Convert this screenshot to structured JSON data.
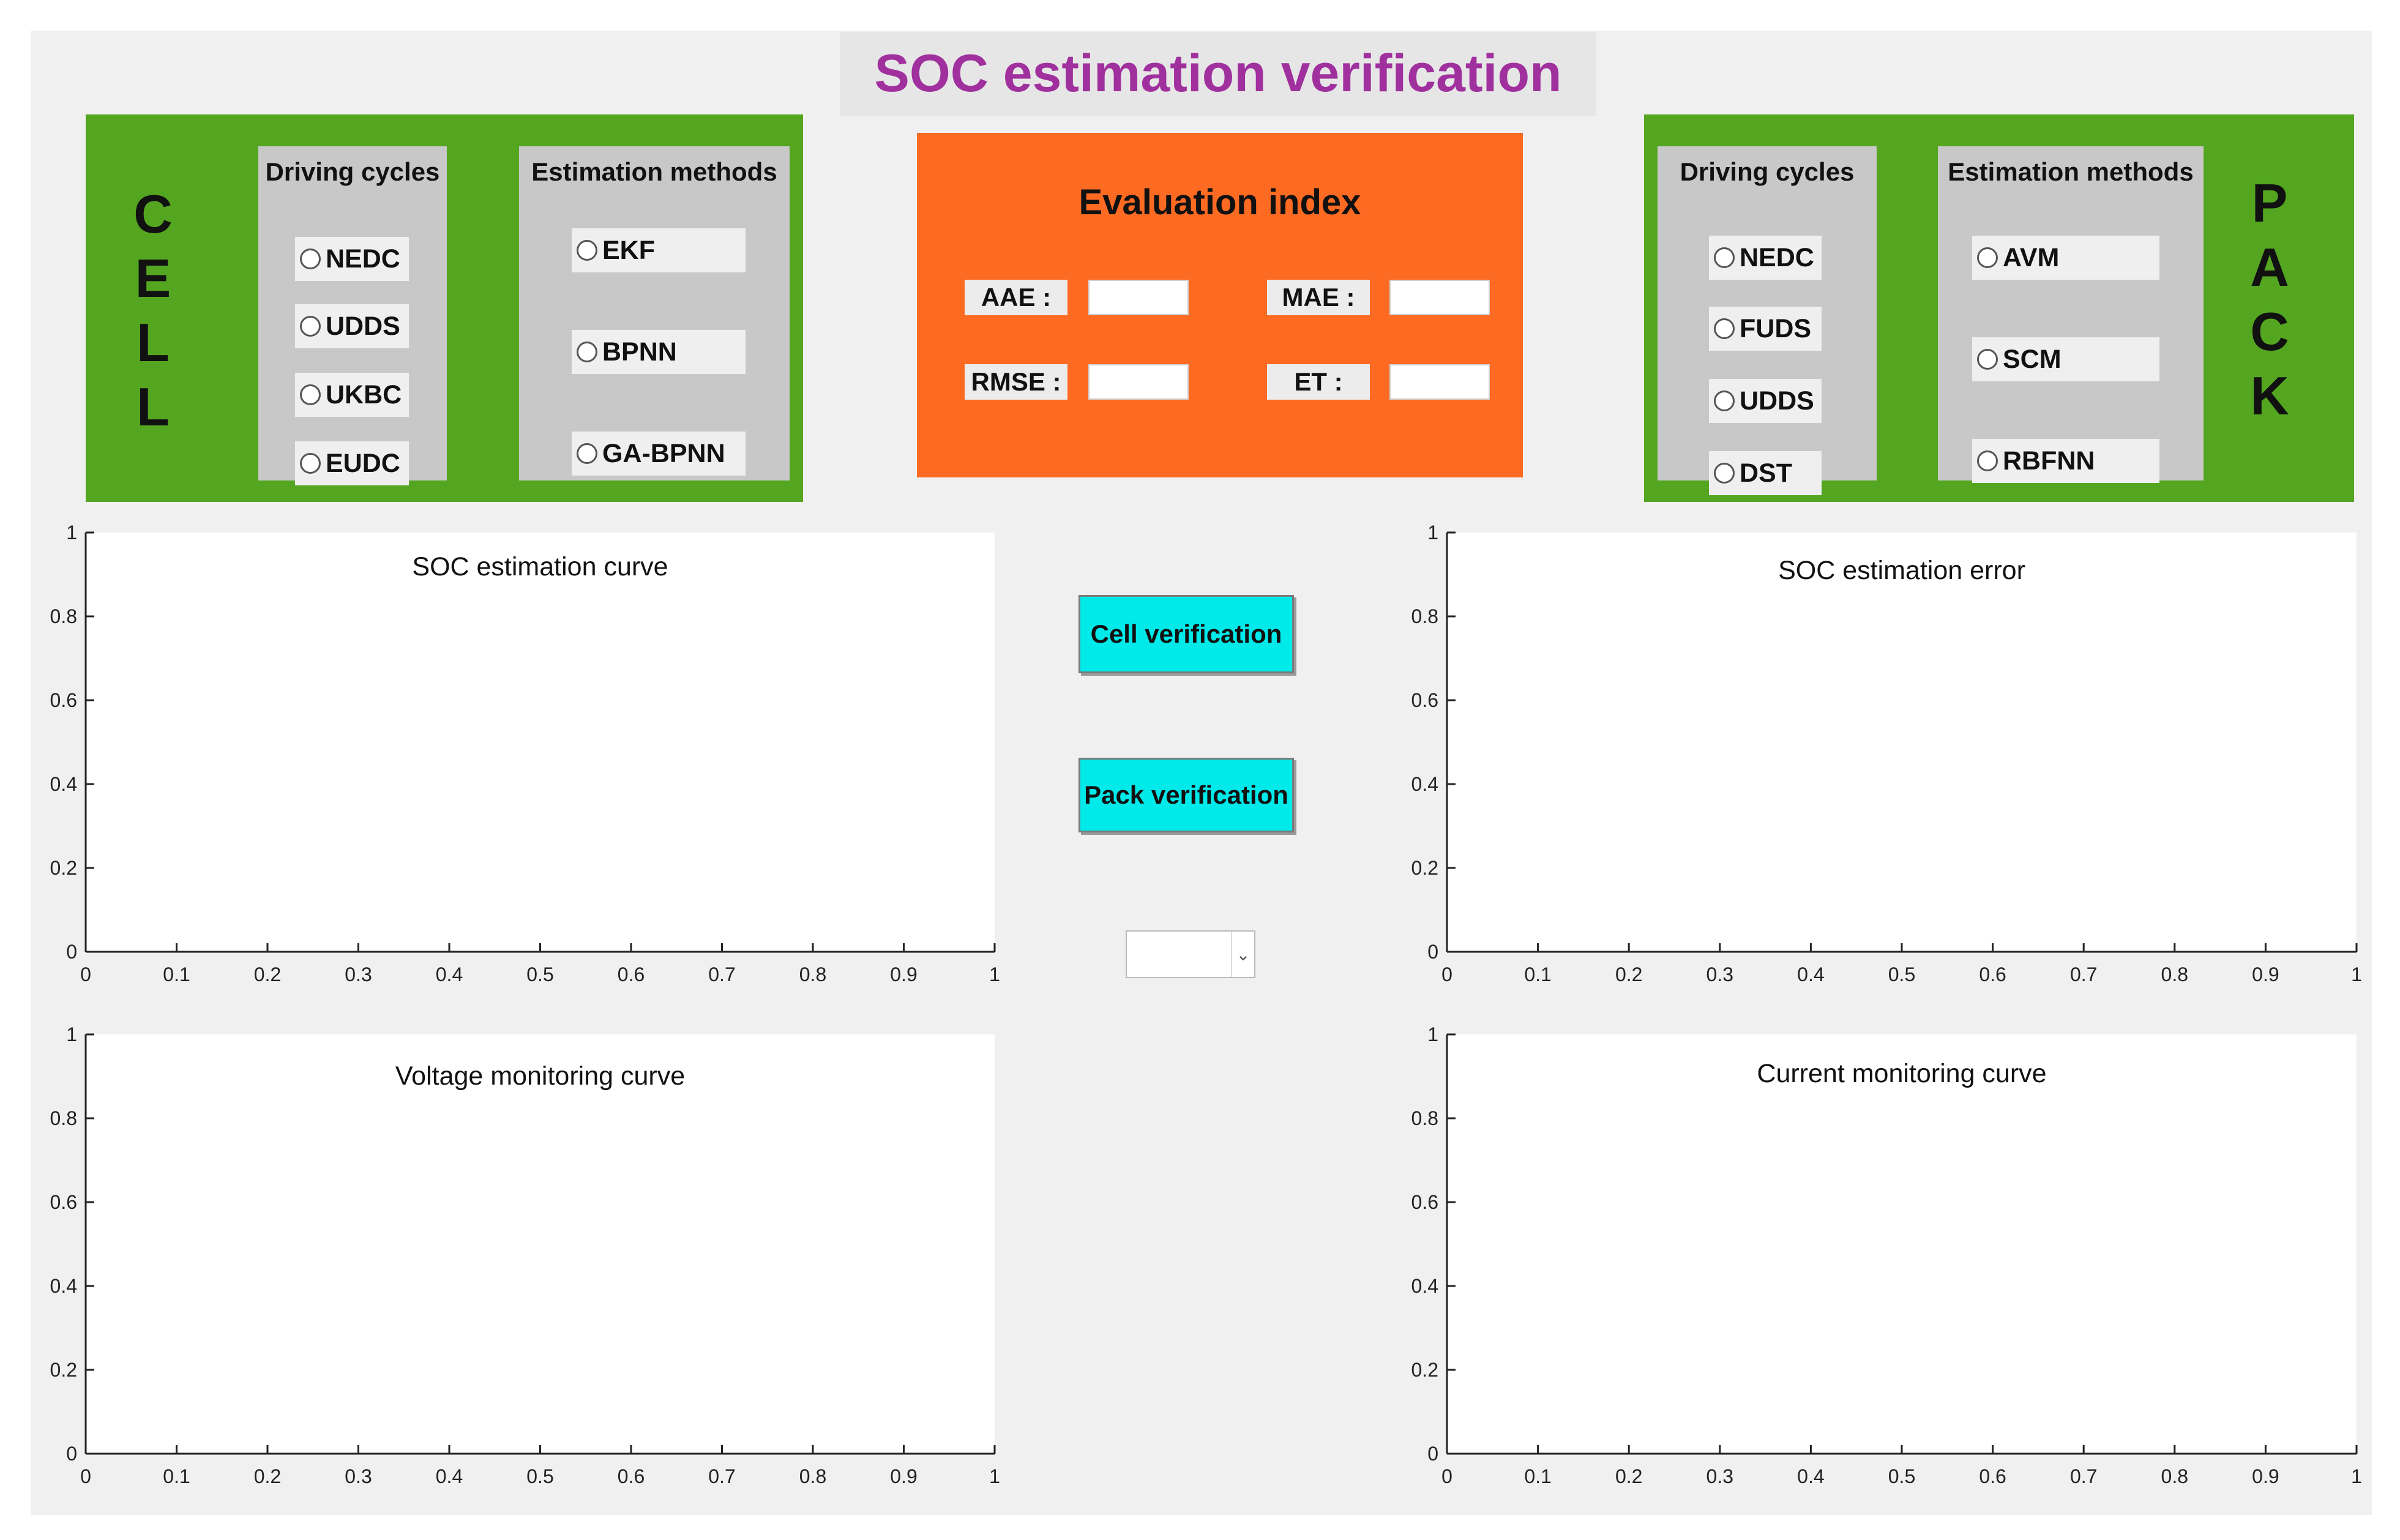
{
  "title": "SOC estimation verification",
  "cell": {
    "letters": [
      "C",
      "E",
      "L",
      "L"
    ],
    "driving_cycles": {
      "title": "Driving cycles",
      "options": [
        "NEDC",
        "UDDS",
        "UKBC",
        "EUDC"
      ]
    },
    "estimation_methods": {
      "title": "Estimation methods",
      "options": [
        "EKF",
        "BPNN",
        "GA-BPNN"
      ]
    }
  },
  "pack": {
    "letters": [
      "P",
      "A",
      "C",
      "K"
    ],
    "driving_cycles": {
      "title": "Driving cycles",
      "options": [
        "NEDC",
        "FUDS",
        "UDDS",
        "DST"
      ]
    },
    "estimation_methods": {
      "title": "Estimation methods",
      "options": [
        "AVM",
        "SCM",
        "RBFNN"
      ]
    }
  },
  "evaluation": {
    "title": "Evaluation index",
    "labels": {
      "aae": "AAE :",
      "mae": "MAE :",
      "rmse": "RMSE :",
      "et": "ET :"
    },
    "values": {
      "aae": "",
      "mae": "",
      "rmse": "",
      "et": ""
    }
  },
  "buttons": {
    "cell": "Cell verification",
    "pack": "Pack verification"
  },
  "dropdown": {
    "value": ""
  },
  "colors": {
    "title": "#a0309e",
    "green_panel": "#54a620",
    "orange_panel": "#fd6a22",
    "button": "#00eaea"
  },
  "chart_data": [
    {
      "type": "line",
      "title": "SOC estimation curve",
      "series": [],
      "xlim": [
        0,
        1
      ],
      "ylim": [
        0,
        1
      ],
      "xticks": [
        "0",
        "0.1",
        "0.2",
        "0.3",
        "0.4",
        "0.5",
        "0.6",
        "0.7",
        "0.8",
        "0.9",
        "1"
      ],
      "yticks": [
        "0",
        "0.2",
        "0.4",
        "0.6",
        "0.8",
        "1"
      ]
    },
    {
      "type": "line",
      "title": "SOC estimation error",
      "series": [],
      "xlim": [
        0,
        1
      ],
      "ylim": [
        0,
        1
      ],
      "xticks": [
        "0",
        "0.1",
        "0.2",
        "0.3",
        "0.4",
        "0.5",
        "0.6",
        "0.7",
        "0.8",
        "0.9",
        "1"
      ],
      "yticks": [
        "0",
        "0.2",
        "0.4",
        "0.6",
        "0.8",
        "1"
      ]
    },
    {
      "type": "line",
      "title": "Voltage monitoring curve",
      "series": [],
      "xlim": [
        0,
        1
      ],
      "ylim": [
        0,
        1
      ],
      "xticks": [
        "0",
        "0.1",
        "0.2",
        "0.3",
        "0.4",
        "0.5",
        "0.6",
        "0.7",
        "0.8",
        "0.9",
        "1"
      ],
      "yticks": [
        "0",
        "0.2",
        "0.4",
        "0.6",
        "0.8",
        "1"
      ]
    },
    {
      "type": "line",
      "title": "Current monitoring curve",
      "series": [],
      "xlim": [
        0,
        1
      ],
      "ylim": [
        0,
        1
      ],
      "xticks": [
        "0",
        "0.1",
        "0.2",
        "0.3",
        "0.4",
        "0.5",
        "0.6",
        "0.7",
        "0.8",
        "0.9",
        "1"
      ],
      "yticks": [
        "0",
        "0.2",
        "0.4",
        "0.6",
        "0.8",
        "1"
      ]
    }
  ]
}
